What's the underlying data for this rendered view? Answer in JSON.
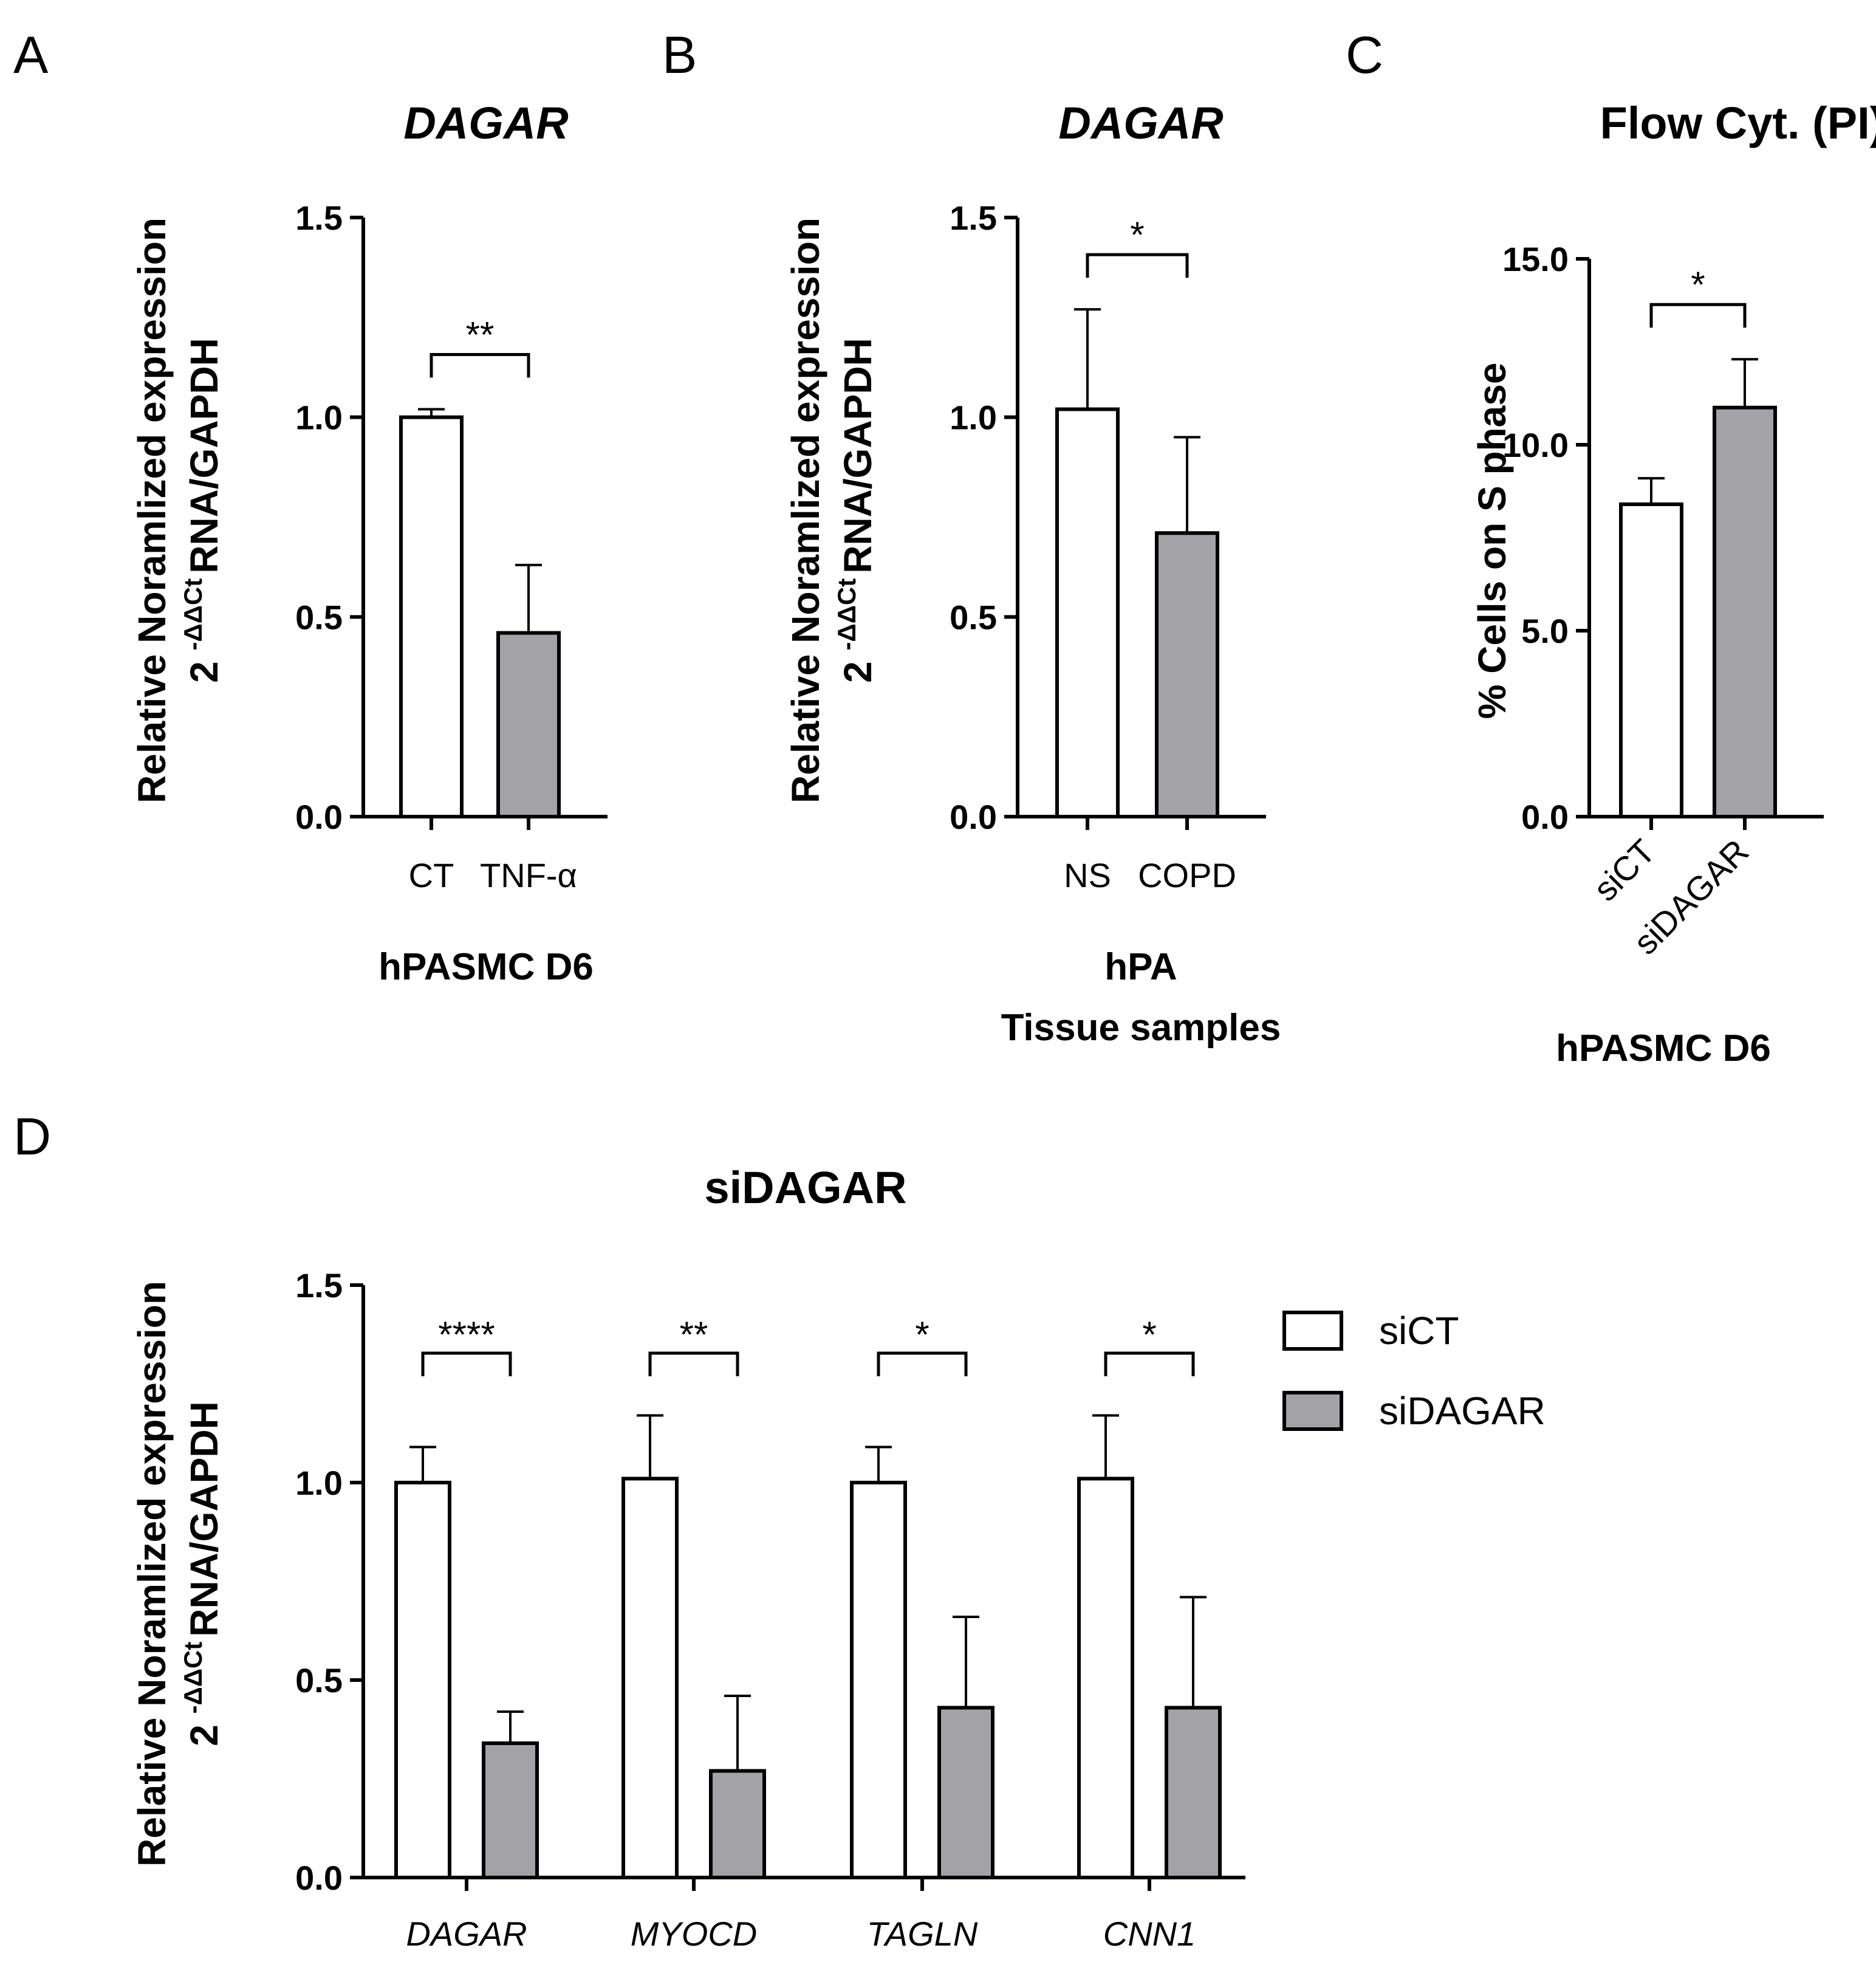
{
  "colors": {
    "white_bar": "#ffffff",
    "gray_bar": "#a3a3a7",
    "stroke": "#000000"
  },
  "chart_data": [
    {
      "panel": "A",
      "type": "bar",
      "title": "DAGAR",
      "title_italic": true,
      "ylabel_line1": "Relative Noramlized expression",
      "ylabel_line2_base": "2",
      "ylabel_line2_sup": "-ΔΔCt",
      "ylabel_line2_rest": "RNA/GAPDH",
      "xlabel_lines": [
        "hPASMC D6"
      ],
      "ylim": [
        0,
        1.5
      ],
      "yticks": [
        0.0,
        0.5,
        1.0,
        1.5
      ],
      "ytick_labels": [
        "0.0",
        "0.5",
        "1.0",
        "1.5"
      ],
      "categories": [
        "CT",
        "TNF-α"
      ],
      "values": [
        1.0,
        0.46
      ],
      "errors": [
        0.02,
        0.17
      ],
      "fills": [
        "white",
        "gray"
      ],
      "significance": [
        {
          "from": 0,
          "to": 1,
          "label": "**"
        }
      ]
    },
    {
      "panel": "B",
      "type": "bar",
      "title": "DAGAR",
      "title_italic": true,
      "ylabel_line1": "Relative Noramlized expression",
      "ylabel_line2_base": "2",
      "ylabel_line2_sup": "-ΔΔCt",
      "ylabel_line2_rest": "RNA/GAPDH",
      "xlabel_lines": [
        "hPA",
        "Tissue samples"
      ],
      "ylim": [
        0,
        1.5
      ],
      "yticks": [
        0.0,
        0.5,
        1.0,
        1.5
      ],
      "ytick_labels": [
        "0.0",
        "0.5",
        "1.0",
        "1.5"
      ],
      "categories": [
        "NS",
        "COPD"
      ],
      "values": [
        1.02,
        0.71
      ],
      "errors": [
        0.25,
        0.24
      ],
      "fills": [
        "white",
        "gray"
      ],
      "significance": [
        {
          "from": 0,
          "to": 1,
          "label": "*"
        }
      ]
    },
    {
      "panel": "C",
      "type": "bar",
      "title": "Flow Cyt. (PI)",
      "title_italic": false,
      "ylabel_line1": "% Cells on S phase",
      "xlabel_lines": [
        "hPASMC D6"
      ],
      "ylim": [
        0,
        15
      ],
      "yticks": [
        0.0,
        5.0,
        10.0,
        15.0
      ],
      "ytick_labels": [
        "0.0",
        "5.0",
        "10.0",
        "15.0"
      ],
      "categories": [
        "siCT",
        "siDAGAR"
      ],
      "category_rotation": -45,
      "values": [
        8.4,
        11.0
      ],
      "errors": [
        0.7,
        1.3
      ],
      "fills": [
        "white",
        "gray"
      ],
      "significance": [
        {
          "from": 0,
          "to": 1,
          "label": "*"
        }
      ]
    },
    {
      "panel": "D",
      "type": "bar",
      "title": "siDAGAR",
      "title_italic": false,
      "ylabel_line1": "Relative Noramlized expression",
      "ylabel_line2_base": "2",
      "ylabel_line2_sup": "-ΔΔCt",
      "ylabel_line2_rest": "RNA/GAPDH",
      "ylim": [
        0,
        1.5
      ],
      "yticks": [
        0.0,
        0.5,
        1.0,
        1.5
      ],
      "ytick_labels": [
        "0.0",
        "0.5",
        "1.0",
        "1.5"
      ],
      "categories": [
        "DAGAR",
        "MYOCD",
        "TAGLN",
        "CNN1"
      ],
      "categories_italic": true,
      "series": [
        {
          "name": "siCT",
          "fill": "white",
          "values": [
            1.0,
            1.01,
            1.0,
            1.01
          ],
          "errors": [
            0.09,
            0.16,
            0.09,
            0.16
          ]
        },
        {
          "name": "siDAGAR",
          "fill": "gray",
          "values": [
            0.34,
            0.27,
            0.43,
            0.43
          ],
          "errors": [
            0.08,
            0.19,
            0.23,
            0.28
          ]
        }
      ],
      "significance": [
        "****",
        "**",
        "*",
        "*"
      ],
      "legend": [
        "siCT",
        "siDAGAR"
      ]
    }
  ]
}
